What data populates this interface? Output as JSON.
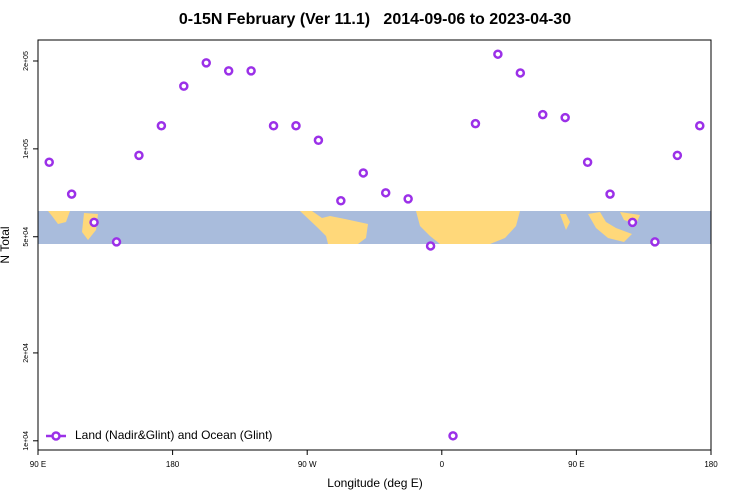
{
  "chart_data": {
    "type": "scatter",
    "title": "0-15N February (Ver 11.1)   2014-09-06 to 2023-04-30",
    "x_label": "Longitude (deg E)",
    "y_label": "N Total",
    "log_y": true,
    "legend_position": "bottom-left",
    "xlim": [
      90,
      540
    ],
    "xticks": [
      {
        "value": 90,
        "label": "90 E"
      },
      180,
      {
        "value": 270,
        "label": "90 W"
      },
      {
        "value": 360,
        "label": "0"
      },
      {
        "value": 450,
        "label": "90 E"
      },
      {
        "value": 540,
        "label": "180"
      }
    ],
    "ylim": [
      9300,
      236000
    ],
    "yticks": [
      {
        "value": 10000,
        "label": "1e+04"
      },
      {
        "value": 20000,
        "label": "2e+04"
      },
      {
        "value": 50000,
        "label": "5e+04"
      },
      {
        "value": 100000,
        "label": "1e+05"
      },
      {
        "value": 200000,
        "label": "2e+05"
      }
    ],
    "series": [
      {
        "name": "Land (Nadir&Glint) and Ocean (Glint)",
        "color": "#9b30e8",
        "x": [
          97.5,
          112.5,
          127.5,
          142.5,
          157.5,
          172.5,
          187.5,
          202.5,
          217.5,
          232.5,
          247.5,
          262.5,
          277.5,
          292.5,
          307.5,
          322.5,
          337.5,
          352.5,
          367.5,
          382.5,
          397.5,
          412.5,
          427.5,
          442.5,
          457.5,
          472.5,
          487.5,
          502.5,
          517.5,
          532.5
        ],
        "values": [
          90000,
          70000,
          56000,
          48000,
          95000,
          120000,
          164000,
          197000,
          185000,
          185000,
          120000,
          120000,
          107000,
          66400,
          82700,
          70700,
          67400,
          46500,
          10400,
          122000,
          211000,
          182000,
          131000,
          128000,
          90000,
          70000,
          56000,
          48000,
          95000,
          120000
        ]
      }
    ]
  }
}
